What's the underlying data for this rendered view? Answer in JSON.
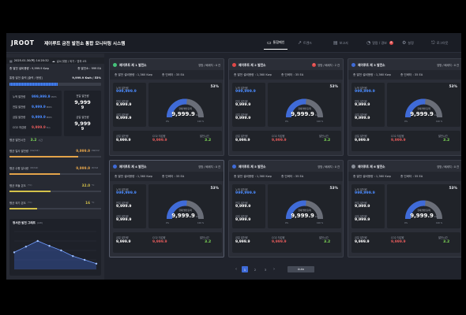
{
  "header": {
    "logo": "JROOT",
    "title": "제이루트 금전 발전소 통합 모니터링 시스템",
    "nav": [
      {
        "label": "통합메인",
        "active": true
      },
      {
        "label": "트렌드",
        "active": false
      },
      {
        "label": "보고서",
        "active": false
      },
      {
        "label": "알람 / 경보",
        "active": false,
        "badge": "8"
      },
      {
        "label": "설정",
        "active": false
      },
      {
        "label": "로그아웃",
        "active": false
      }
    ]
  },
  "left": {
    "datetime": "2025.01.30(목) 14:20:32",
    "weather": "날씨 맑음 / 외기 : 영하 4도",
    "total_capacity_label": "총 발전 설비용량 : 9,999.9 Kwp",
    "total_count_label": "총 발전소 : 999 EA",
    "today_label": "통합 발전 출력 [출력 / 용량]",
    "today_value": "9,999.9 Kwh / 53%",
    "cumulative": [
      {
        "label": "누적 발전량",
        "value": "999,999.9",
        "unit": "MWh",
        "color": "#4b8bff"
      },
      {
        "label": "전일 발전량",
        "value": "9,999.9",
        "unit": "MWh",
        "color": "#4b8bff"
      },
      {
        "label": "금일 발전량",
        "value": "9,999.9",
        "unit": "MWh",
        "color": "#4b8bff"
      },
      {
        "label": "CO2 저감량",
        "value": "9,999.9",
        "unit": "Ton",
        "color": "#e05a5a"
      }
    ],
    "avg_label": "평균 발전시간",
    "avg_value": "3.2",
    "avg_unit": "시간",
    "right_box": [
      {
        "label": "전일 발전량",
        "value": "9,999",
        "sub": "9"
      },
      {
        "label": "금일 발전량",
        "value": "9,999",
        "sub": "9"
      }
    ],
    "metrics": [
      {
        "label": "평균 일사 발전량",
        "unit": "(kw/m2)",
        "value": "9,999.9",
        "unit2": "kW/m2",
        "fill": 0.75,
        "color": "#e3a34a"
      },
      {
        "label": "평균 수평 일사량",
        "unit": "(W/m2)",
        "value": "9,999.9",
        "unit2": "W/m2",
        "fill": 0.55,
        "color": "#e3a34a"
      },
      {
        "label": "평균 모듈 온도",
        "unit": "(°C)",
        "value": "32.0",
        "unit2": "°C",
        "fill": 0.45,
        "color": "#d4c14a"
      },
      {
        "label": "평균 외기 온도",
        "unit": "(°C)",
        "value": "16",
        "unit2": "°C",
        "fill": 0.3,
        "color": "#d4c14a"
      }
    ],
    "graph_label": "정서관 발전 그래프",
    "graph_unit": "(kW)",
    "graph_points": [
      0.45,
      0.6,
      0.75,
      0.62,
      0.5,
      0.35,
      0.25,
      0.15
    ]
  },
  "plants": [
    {
      "name": "제이루트 제 1 발전소",
      "dot": "#45c27a",
      "status": "양방 / 베세지 : 0 건",
      "alarm": false,
      "cap": "총 발전 설비용량 : 1,360 Kwp",
      "cnt": "총 인버터 : 35 EA",
      "cum_label": "누적 발전량",
      "cum": "999,999.9",
      "prev_label": "전일 발전량",
      "prev": "9,999.9",
      "today_label": "금일 발전량",
      "today": "9,999.9",
      "co2_label": "CO2 저감량",
      "co2": "9,999.9",
      "avg_label": "발전시간",
      "avg": "3.2",
      "pct": "53%",
      "gauge_label": "현재 발전출력",
      "gauge_value": "9,999.9",
      "gauge_unit": "kw",
      "min": "0%",
      "max": "100 %",
      "ratio": 0.53
    },
    {
      "name": "제이루트 제 2 발전소",
      "dot": "#e04848",
      "status": "양방 / 베세지 : 2 건",
      "alarm": true,
      "cap": "총 발전 설비용량 : 1,360 Kwp",
      "cnt": "총 인버터 : 35 EA",
      "cum_label": "누적 발전량",
      "cum": "999,999.9",
      "prev_label": "전일 발전량",
      "prev": "9,999.9",
      "today_label": "금일 발전량",
      "today": "9,999.9",
      "co2_label": "CO2 저감량",
      "co2": "9,999.9",
      "avg_label": "발전시간",
      "avg": "3.2",
      "pct": "53%",
      "gauge_label": "현재 발전출력",
      "gauge_value": "9,999.9",
      "gauge_unit": "kw",
      "min": "0%",
      "max": "100 %",
      "ratio": 0.53
    },
    {
      "name": "제이루트 제 3 발전소",
      "dot": "#3f6bd8",
      "status": "양방 / 베세지 : 0 건",
      "alarm": false,
      "cap": "총 발전 설비용량 : 1,360 Kwp",
      "cnt": "총 인버터 : 35 EA",
      "cum_label": "누적 발전량",
      "cum": "999,999.9",
      "prev_label": "전일 발전량",
      "prev": "9,999.9",
      "today_label": "금일 발전량",
      "today": "9,999.9",
      "co2_label": "CO2 저감량",
      "co2": "9,999.9",
      "avg_label": "발전시간",
      "avg": "3.2",
      "pct": "53%",
      "gauge_label": "현재 발전출력",
      "gauge_value": "9,999.9",
      "gauge_unit": "kw",
      "min": "0%",
      "max": "100 %",
      "ratio": 0.53
    },
    {
      "name": "제이루트 제 4 발전소",
      "dot": "#3f6bd8",
      "status": "양방 / 베세지 : 0 건",
      "alarm": false,
      "cap": "총 발전 설비용량 : 1,360 Kwp",
      "cnt": "총 인버터 : 35 EA",
      "cum_label": "누적 발전량",
      "cum": "999,999.9",
      "prev_label": "전일 발전량",
      "prev": "9,999.9",
      "today_label": "금일 발전량",
      "today": "9,999.9",
      "co2_label": "CO2 저감량",
      "co2": "9,999.9",
      "avg_label": "발전시간",
      "avg": "3.2",
      "pct": "53%",
      "gauge_label": "현재 발전출력",
      "gauge_value": "9,999.9",
      "gauge_unit": "kw",
      "min": "0%",
      "max": "100 %",
      "ratio": 0.53
    },
    {
      "name": "제이루트 제 5 발전소",
      "dot": "#3f6bd8",
      "status": "양방 / 베세지 : 0 건",
      "alarm": false,
      "cap": "총 발전 설비용량 : 1,360 Kwp",
      "cnt": "총 인버터 : 35 EA",
      "cum_label": "누적 발전량",
      "cum": "999,999.9",
      "prev_label": "전일 발전량",
      "prev": "9,999.9",
      "today_label": "금일 발전량",
      "today": "9,999.9",
      "co2_label": "CO2 저감량",
      "co2": "9,999.9",
      "avg_label": "발전시간",
      "avg": "3.2",
      "pct": "53%",
      "gauge_label": "현재 발전출력",
      "gauge_value": "9,999.9",
      "gauge_unit": "kw",
      "min": "0%",
      "max": "100 %",
      "ratio": 0.53
    },
    {
      "name": "제이루트 제 6 발전소",
      "dot": "#8a8f99",
      "status": "양방 / 베세지 : 0 건",
      "alarm": false,
      "cap": "총 발전 설비용량 : 1,360 Kwp",
      "cnt": "총 인버터 : 35 EA",
      "cum_label": "누적 발전량",
      "cum": "999,999.9",
      "prev_label": "전일 발전량",
      "prev": "9,999.9",
      "today_label": "금일 발전량",
      "today": "9,999.9",
      "co2_label": "CO2 저감량",
      "co2": "9,999.9",
      "avg_label": "발전시간",
      "avg": "3.2",
      "pct": "53%",
      "gauge_label": "현재 발전출력",
      "gauge_value": "9,999.9",
      "gauge_unit": "kw",
      "min": "0%",
      "max": "100 %",
      "ratio": 0.53
    }
  ],
  "pagination": {
    "prev": "‹",
    "pages": [
      "1",
      "2",
      "3"
    ],
    "current": "1",
    "next": "›",
    "auto": "Auto"
  }
}
